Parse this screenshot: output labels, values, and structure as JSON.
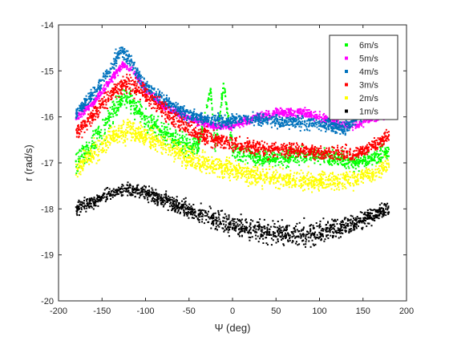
{
  "chart_data": {
    "type": "scatter",
    "xlabel": "Ψ (deg)",
    "ylabel": "r (rad/s)",
    "xlim": [
      -200,
      200
    ],
    "ylim": [
      -20,
      -14
    ],
    "xticks": [
      -200,
      -150,
      -100,
      -50,
      0,
      50,
      100,
      150,
      200
    ],
    "xtick_labels": [
      "-200",
      "-150",
      "-100",
      "-50",
      "0",
      "50",
      "100",
      "150",
      "200"
    ],
    "yticks": [
      -20,
      -19,
      -18,
      -17,
      -16,
      -15,
      -14
    ],
    "ytick_labels": [
      "-20",
      "-19",
      "-18",
      "-17",
      "-16",
      "-15",
      "-14"
    ],
    "grid": false,
    "legend_position": "top-right",
    "x_range_data": [
      -180,
      180
    ],
    "series": [
      {
        "name": "6m/s",
        "color": "#00ff00",
        "points": [
          [
            -180,
            -16.95
          ],
          [
            -165,
            -16.7
          ],
          [
            -150,
            -16.3
          ],
          [
            -135,
            -15.85
          ],
          [
            -125,
            -15.55
          ],
          [
            -115,
            -15.7
          ],
          [
            -100,
            -16.05
          ],
          [
            -80,
            -16.35
          ],
          [
            -60,
            -16.55
          ],
          [
            -40,
            -16.65
          ],
          [
            -25,
            -15.4
          ],
          [
            -20,
            -16.7
          ],
          [
            -10,
            -15.3
          ],
          [
            0,
            -16.75
          ],
          [
            20,
            -16.85
          ],
          [
            40,
            -16.9
          ],
          [
            60,
            -16.9
          ],
          [
            80,
            -16.85
          ],
          [
            100,
            -16.85
          ],
          [
            120,
            -16.9
          ],
          [
            140,
            -17.0
          ],
          [
            160,
            -16.9
          ],
          [
            180,
            -16.75
          ]
        ],
        "spread": [
          0.5,
          0.5,
          0.5,
          0.45,
          0.4,
          0.4,
          0.45,
          0.45,
          0.4,
          0.35,
          0.15,
          0.35,
          0.15,
          0.3,
          0.3,
          0.3,
          0.3,
          0.3,
          0.3,
          0.3,
          0.3,
          0.3,
          0.35
        ]
      },
      {
        "name": "5m/s",
        "color": "#ff00ff",
        "points": [
          [
            -180,
            -16.0
          ],
          [
            -160,
            -15.7
          ],
          [
            -140,
            -15.2
          ],
          [
            -125,
            -14.85
          ],
          [
            -115,
            -15.0
          ],
          [
            -100,
            -15.4
          ],
          [
            -80,
            -15.75
          ],
          [
            -60,
            -15.95
          ],
          [
            -40,
            -16.1
          ],
          [
            -20,
            -16.2
          ],
          [
            0,
            -16.2
          ],
          [
            20,
            -16.05
          ],
          [
            40,
            -15.95
          ],
          [
            60,
            -15.9
          ],
          [
            80,
            -15.9
          ],
          [
            100,
            -16.0
          ],
          [
            120,
            -16.15
          ],
          [
            140,
            -16.2
          ],
          [
            160,
            -16.05
          ],
          [
            180,
            -15.95
          ]
        ],
        "spread": [
          0.15,
          0.15,
          0.15,
          0.12,
          0.12,
          0.15,
          0.15,
          0.15,
          0.15,
          0.15,
          0.15,
          0.18,
          0.18,
          0.18,
          0.18,
          0.18,
          0.15,
          0.15,
          0.15,
          0.15
        ]
      },
      {
        "name": "4m/s",
        "color": "#0072bd",
        "points": [
          [
            -180,
            -15.95
          ],
          [
            -160,
            -15.5
          ],
          [
            -140,
            -14.95
          ],
          [
            -128,
            -14.55
          ],
          [
            -118,
            -14.75
          ],
          [
            -105,
            -15.2
          ],
          [
            -90,
            -15.5
          ],
          [
            -70,
            -15.75
          ],
          [
            -50,
            -15.95
          ],
          [
            -30,
            -16.05
          ],
          [
            -10,
            -16.1
          ],
          [
            10,
            -16.05
          ],
          [
            30,
            -16.05
          ],
          [
            50,
            -16.1
          ],
          [
            70,
            -16.1
          ],
          [
            90,
            -16.15
          ],
          [
            110,
            -16.2
          ],
          [
            130,
            -16.25
          ],
          [
            145,
            -16.0
          ],
          [
            160,
            -15.85
          ],
          [
            180,
            -15.85
          ]
        ],
        "spread": [
          0.2,
          0.25,
          0.3,
          0.3,
          0.3,
          0.3,
          0.25,
          0.25,
          0.25,
          0.22,
          0.22,
          0.22,
          0.25,
          0.25,
          0.25,
          0.25,
          0.25,
          0.25,
          0.22,
          0.2,
          0.2
        ]
      },
      {
        "name": "3m/s",
        "color": "#ff0000",
        "points": [
          [
            -180,
            -16.35
          ],
          [
            -160,
            -15.95
          ],
          [
            -140,
            -15.5
          ],
          [
            -120,
            -15.25
          ],
          [
            -100,
            -15.5
          ],
          [
            -80,
            -15.85
          ],
          [
            -60,
            -16.15
          ],
          [
            -40,
            -16.35
          ],
          [
            -20,
            -16.5
          ],
          [
            0,
            -16.6
          ],
          [
            20,
            -16.65
          ],
          [
            40,
            -16.7
          ],
          [
            60,
            -16.7
          ],
          [
            80,
            -16.75
          ],
          [
            100,
            -16.75
          ],
          [
            120,
            -16.8
          ],
          [
            140,
            -16.8
          ],
          [
            160,
            -16.65
          ],
          [
            180,
            -16.4
          ]
        ],
        "spread": [
          0.3,
          0.35,
          0.35,
          0.35,
          0.35,
          0.35,
          0.32,
          0.3,
          0.3,
          0.28,
          0.28,
          0.28,
          0.28,
          0.28,
          0.28,
          0.28,
          0.25,
          0.25,
          0.25
        ]
      },
      {
        "name": "2m/s",
        "color": "#ffff00",
        "points": [
          [
            -180,
            -17.15
          ],
          [
            -160,
            -16.8
          ],
          [
            -140,
            -16.45
          ],
          [
            -120,
            -16.3
          ],
          [
            -100,
            -16.4
          ],
          [
            -80,
            -16.6
          ],
          [
            -60,
            -16.8
          ],
          [
            -40,
            -16.95
          ],
          [
            -20,
            -17.05
          ],
          [
            0,
            -17.15
          ],
          [
            20,
            -17.25
          ],
          [
            40,
            -17.3
          ],
          [
            60,
            -17.35
          ],
          [
            80,
            -17.4
          ],
          [
            100,
            -17.4
          ],
          [
            120,
            -17.4
          ],
          [
            140,
            -17.35
          ],
          [
            160,
            -17.25
          ],
          [
            180,
            -17.05
          ]
        ],
        "spread": [
          0.4,
          0.4,
          0.4,
          0.4,
          0.4,
          0.4,
          0.4,
          0.38,
          0.38,
          0.38,
          0.38,
          0.38,
          0.38,
          0.38,
          0.38,
          0.38,
          0.38,
          0.38,
          0.38
        ]
      },
      {
        "name": "1m/s",
        "color": "#000000",
        "points": [
          [
            -180,
            -18.0
          ],
          [
            -160,
            -17.85
          ],
          [
            -140,
            -17.65
          ],
          [
            -120,
            -17.6
          ],
          [
            -100,
            -17.65
          ],
          [
            -80,
            -17.8
          ],
          [
            -60,
            -17.95
          ],
          [
            -40,
            -18.1
          ],
          [
            -20,
            -18.25
          ],
          [
            0,
            -18.35
          ],
          [
            20,
            -18.45
          ],
          [
            40,
            -18.5
          ],
          [
            60,
            -18.55
          ],
          [
            80,
            -18.55
          ],
          [
            100,
            -18.5
          ],
          [
            120,
            -18.4
          ],
          [
            140,
            -18.3
          ],
          [
            160,
            -18.15
          ],
          [
            180,
            -18.0
          ]
        ],
        "spread": [
          0.25,
          0.25,
          0.25,
          0.25,
          0.25,
          0.25,
          0.3,
          0.35,
          0.38,
          0.4,
          0.42,
          0.45,
          0.45,
          0.45,
          0.42,
          0.4,
          0.35,
          0.3,
          0.28
        ]
      }
    ]
  }
}
